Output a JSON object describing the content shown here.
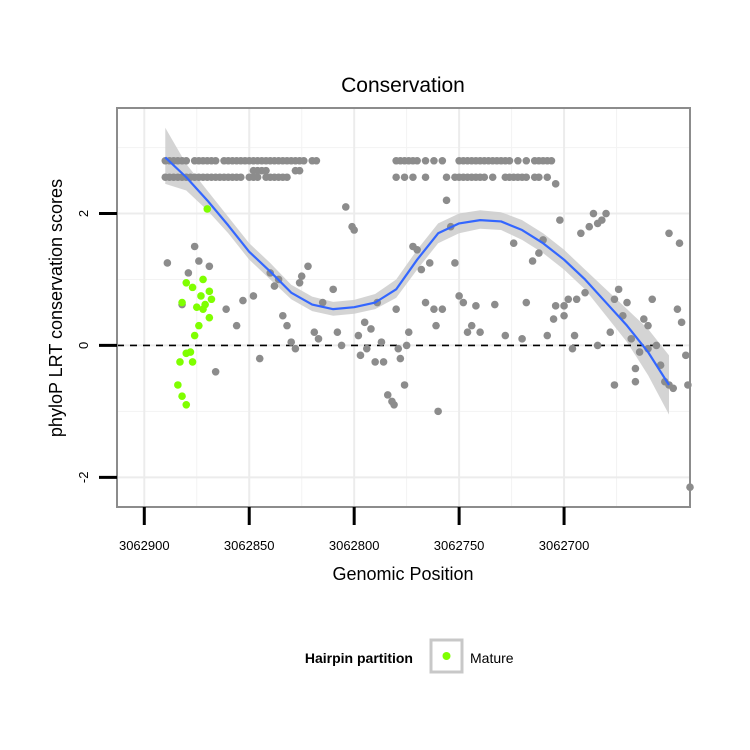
{
  "chart_data": {
    "type": "scatter",
    "title": "Conservation",
    "xlabel": "Genomic Position",
    "ylabel": "phyloP LRT conservation scores",
    "x_reversed": true,
    "xlim": [
      3062913,
      3062640
    ],
    "ylim": [
      -2.45,
      3.6
    ],
    "x_ticks": [
      3062900,
      3062850,
      3062800,
      3062750,
      3062700
    ],
    "x_tick_labels": [
      "3062900",
      "3062850",
      "3062800",
      "3062750",
      "3062700"
    ],
    "y_ticks": [
      -2,
      0,
      2
    ],
    "y_tick_labels": [
      "-2",
      "0",
      "2"
    ],
    "grid": true,
    "reference_line": {
      "y": 0,
      "style": "dashed"
    },
    "legend": {
      "title": "Hairpin partition",
      "placement": "bottom",
      "entries": [
        "Mature"
      ]
    },
    "colors": {
      "other_points": "#8c8c8c",
      "mature_points": "#7fff00",
      "smooth_line": "#3366ff",
      "confidence_band": "#cccccc"
    },
    "smooth": {
      "x": [
        3062890,
        3062880,
        3062870,
        3062860,
        3062850,
        3062840,
        3062830,
        3062820,
        3062810,
        3062800,
        3062790,
        3062780,
        3062770,
        3062760,
        3062750,
        3062740,
        3062730,
        3062720,
        3062710,
        3062700,
        3062690,
        3062680,
        3062670,
        3062660,
        3062650
      ],
      "y": [
        2.85,
        2.55,
        2.2,
        1.82,
        1.42,
        1.12,
        0.8,
        0.62,
        0.55,
        0.58,
        0.65,
        0.85,
        1.3,
        1.7,
        1.85,
        1.9,
        1.88,
        1.75,
        1.55,
        1.3,
        1.0,
        0.65,
        0.3,
        -0.1,
        -0.6
      ],
      "lower": [
        2.45,
        2.35,
        2.05,
        1.7,
        1.3,
        1.0,
        0.7,
        0.52,
        0.45,
        0.48,
        0.55,
        0.72,
        1.15,
        1.55,
        1.7,
        1.77,
        1.75,
        1.6,
        1.4,
        1.15,
        0.85,
        0.45,
        0.05,
        -0.45,
        -1.05
      ],
      "upper": [
        3.3,
        2.75,
        2.35,
        1.95,
        1.55,
        1.25,
        0.92,
        0.74,
        0.66,
        0.69,
        0.78,
        1.0,
        1.45,
        1.85,
        2.0,
        2.05,
        2.02,
        1.9,
        1.7,
        1.45,
        1.15,
        0.85,
        0.55,
        0.25,
        -0.15
      ]
    },
    "series": [
      {
        "name": "Mature",
        "points": [
          [
            3062870,
            2.07
          ],
          [
            3062872,
            1.0
          ],
          [
            3062869,
            0.82
          ],
          [
            3062868,
            0.7
          ],
          [
            3062871,
            0.62
          ],
          [
            3062869,
            0.42
          ],
          [
            3062872,
            0.55
          ],
          [
            3062873,
            0.75
          ],
          [
            3062875,
            0.58
          ],
          [
            3062877,
            0.88
          ],
          [
            3062880,
            0.95
          ],
          [
            3062882,
            0.65
          ],
          [
            3062874,
            0.3
          ],
          [
            3062876,
            0.15
          ],
          [
            3062878,
            -0.1
          ],
          [
            3062880,
            -0.12
          ],
          [
            3062877,
            -0.25
          ],
          [
            3062883,
            -0.25
          ],
          [
            3062884,
            -0.6
          ],
          [
            3062882,
            -0.77
          ],
          [
            3062880,
            -0.9
          ]
        ]
      },
      {
        "points": [
          [
            3062890,
            2.8
          ],
          [
            3062888,
            2.8
          ],
          [
            3062886,
            2.8
          ],
          [
            3062884,
            2.8
          ],
          [
            3062882,
            2.8
          ],
          [
            3062880,
            2.8
          ],
          [
            3062876,
            2.8
          ],
          [
            3062874,
            2.8
          ],
          [
            3062872,
            2.8
          ],
          [
            3062870,
            2.8
          ],
          [
            3062868,
            2.8
          ],
          [
            3062866,
            2.8
          ],
          [
            3062862,
            2.8
          ],
          [
            3062860,
            2.8
          ],
          [
            3062858,
            2.8
          ],
          [
            3062856,
            2.8
          ],
          [
            3062854,
            2.8
          ],
          [
            3062852,
            2.8
          ],
          [
            3062850,
            2.8
          ],
          [
            3062848,
            2.8
          ],
          [
            3062846,
            2.8
          ],
          [
            3062844,
            2.8
          ],
          [
            3062842,
            2.8
          ],
          [
            3062840,
            2.8
          ],
          [
            3062838,
            2.8
          ],
          [
            3062836,
            2.8
          ],
          [
            3062834,
            2.8
          ],
          [
            3062832,
            2.8
          ],
          [
            3062830,
            2.8
          ],
          [
            3062828,
            2.8
          ],
          [
            3062826,
            2.8
          ],
          [
            3062824,
            2.8
          ],
          [
            3062820,
            2.8
          ],
          [
            3062818,
            2.8
          ],
          [
            3062890,
            2.55
          ],
          [
            3062888,
            2.55
          ],
          [
            3062886,
            2.55
          ],
          [
            3062884,
            2.55
          ],
          [
            3062882,
            2.55
          ],
          [
            3062880,
            2.55
          ],
          [
            3062878,
            2.55
          ],
          [
            3062876,
            2.55
          ],
          [
            3062874,
            2.55
          ],
          [
            3062872,
            2.55
          ],
          [
            3062870,
            2.55
          ],
          [
            3062868,
            2.55
          ],
          [
            3062866,
            2.55
          ],
          [
            3062864,
            2.55
          ],
          [
            3062862,
            2.55
          ],
          [
            3062860,
            2.55
          ],
          [
            3062858,
            2.55
          ],
          [
            3062856,
            2.55
          ],
          [
            3062854,
            2.55
          ],
          [
            3062850,
            2.55
          ],
          [
            3062848,
            2.55
          ],
          [
            3062846,
            2.55
          ],
          [
            3062842,
            2.55
          ],
          [
            3062840,
            2.55
          ],
          [
            3062838,
            2.55
          ],
          [
            3062836,
            2.55
          ],
          [
            3062834,
            2.55
          ],
          [
            3062832,
            2.55
          ],
          [
            3062842,
            2.65
          ],
          [
            3062844,
            2.65
          ],
          [
            3062846,
            2.65
          ],
          [
            3062848,
            2.65
          ],
          [
            3062828,
            2.65
          ],
          [
            3062826,
            2.65
          ],
          [
            3062780,
            2.8
          ],
          [
            3062778,
            2.8
          ],
          [
            3062776,
            2.8
          ],
          [
            3062774,
            2.8
          ],
          [
            3062772,
            2.8
          ],
          [
            3062770,
            2.8
          ],
          [
            3062766,
            2.8
          ],
          [
            3062762,
            2.8
          ],
          [
            3062758,
            2.8
          ],
          [
            3062750,
            2.8
          ],
          [
            3062748,
            2.8
          ],
          [
            3062746,
            2.8
          ],
          [
            3062744,
            2.8
          ],
          [
            3062742,
            2.8
          ],
          [
            3062740,
            2.8
          ],
          [
            3062738,
            2.8
          ],
          [
            3062736,
            2.8
          ],
          [
            3062734,
            2.8
          ],
          [
            3062732,
            2.8
          ],
          [
            3062730,
            2.8
          ],
          [
            3062728,
            2.8
          ],
          [
            3062726,
            2.8
          ],
          [
            3062722,
            2.8
          ],
          [
            3062718,
            2.8
          ],
          [
            3062714,
            2.8
          ],
          [
            3062712,
            2.8
          ],
          [
            3062710,
            2.8
          ],
          [
            3062708,
            2.8
          ],
          [
            3062706,
            2.8
          ],
          [
            3062780,
            2.55
          ],
          [
            3062776,
            2.55
          ],
          [
            3062772,
            2.55
          ],
          [
            3062766,
            2.55
          ],
          [
            3062756,
            2.55
          ],
          [
            3062752,
            2.55
          ],
          [
            3062750,
            2.55
          ],
          [
            3062748,
            2.55
          ],
          [
            3062746,
            2.55
          ],
          [
            3062744,
            2.55
          ],
          [
            3062742,
            2.55
          ],
          [
            3062740,
            2.55
          ],
          [
            3062738,
            2.55
          ],
          [
            3062734,
            2.55
          ],
          [
            3062728,
            2.55
          ],
          [
            3062726,
            2.55
          ],
          [
            3062724,
            2.55
          ],
          [
            3062722,
            2.55
          ],
          [
            3062720,
            2.55
          ],
          [
            3062718,
            2.55
          ],
          [
            3062714,
            2.55
          ],
          [
            3062712,
            2.55
          ],
          [
            3062708,
            2.55
          ],
          [
            3062704,
            2.45
          ],
          [
            3062889,
            1.25
          ],
          [
            3062882,
            0.62
          ],
          [
            3062879,
            1.1
          ],
          [
            3062876,
            1.5
          ],
          [
            3062874,
            1.28
          ],
          [
            3062869,
            1.2
          ],
          [
            3062866,
            -0.4
          ],
          [
            3062861,
            0.55
          ],
          [
            3062856,
            0.3
          ],
          [
            3062853,
            0.68
          ],
          [
            3062848,
            0.75
          ],
          [
            3062845,
            -0.2
          ],
          [
            3062840,
            1.1
          ],
          [
            3062838,
            0.9
          ],
          [
            3062836,
            1.0
          ],
          [
            3062834,
            0.45
          ],
          [
            3062832,
            0.3
          ],
          [
            3062830,
            0.05
          ],
          [
            3062828,
            -0.05
          ],
          [
            3062826,
            0.95
          ],
          [
            3062825,
            1.05
          ],
          [
            3062822,
            1.2
          ],
          [
            3062819,
            0.2
          ],
          [
            3062817,
            0.1
          ],
          [
            3062815,
            0.65
          ],
          [
            3062810,
            0.85
          ],
          [
            3062808,
            0.2
          ],
          [
            3062806,
            0.0
          ],
          [
            3062804,
            2.1
          ],
          [
            3062801,
            1.8
          ],
          [
            3062800,
            1.75
          ],
          [
            3062798,
            0.15
          ],
          [
            3062797,
            -0.15
          ],
          [
            3062795,
            0.35
          ],
          [
            3062794,
            -0.05
          ],
          [
            3062792,
            0.25
          ],
          [
            3062790,
            -0.25
          ],
          [
            3062789,
            0.65
          ],
          [
            3062787,
            0.05
          ],
          [
            3062786,
            -0.25
          ],
          [
            3062784,
            -0.75
          ],
          [
            3062782,
            -0.85
          ],
          [
            3062781,
            -0.9
          ],
          [
            3062780,
            0.55
          ],
          [
            3062779,
            -0.05
          ],
          [
            3062778,
            -0.2
          ],
          [
            3062776,
            -0.6
          ],
          [
            3062775,
            0.0
          ],
          [
            3062774,
            0.2
          ],
          [
            3062772,
            1.5
          ],
          [
            3062770,
            1.45
          ],
          [
            3062768,
            1.15
          ],
          [
            3062766,
            0.65
          ],
          [
            3062764,
            1.25
          ],
          [
            3062762,
            0.55
          ],
          [
            3062761,
            0.3
          ],
          [
            3062760,
            -1.0
          ],
          [
            3062758,
            0.55
          ],
          [
            3062756,
            2.2
          ],
          [
            3062754,
            1.8
          ],
          [
            3062752,
            1.25
          ],
          [
            3062750,
            0.75
          ],
          [
            3062748,
            0.65
          ],
          [
            3062746,
            0.2
          ],
          [
            3062744,
            0.3
          ],
          [
            3062742,
            0.6
          ],
          [
            3062740,
            0.2
          ],
          [
            3062733,
            0.62
          ],
          [
            3062728,
            0.15
          ],
          [
            3062724,
            1.55
          ],
          [
            3062718,
            0.65
          ],
          [
            3062715,
            1.28
          ],
          [
            3062712,
            1.4
          ],
          [
            3062710,
            1.6
          ],
          [
            3062708,
            0.15
          ],
          [
            3062705,
            0.4
          ],
          [
            3062704,
            0.6
          ],
          [
            3062702,
            1.9
          ],
          [
            3062700,
            0.45
          ],
          [
            3062698,
            0.7
          ],
          [
            3062696,
            -0.05
          ],
          [
            3062695,
            0.15
          ],
          [
            3062694,
            0.7
          ],
          [
            3062692,
            1.7
          ],
          [
            3062690,
            0.8
          ],
          [
            3062688,
            1.8
          ],
          [
            3062686,
            2.0
          ],
          [
            3062684,
            1.85
          ],
          [
            3062682,
            1.9
          ],
          [
            3062680,
            2.0
          ],
          [
            3062678,
            0.2
          ],
          [
            3062676,
            0.7
          ],
          [
            3062674,
            0.85
          ],
          [
            3062672,
            0.45
          ],
          [
            3062670,
            0.65
          ],
          [
            3062668,
            0.1
          ],
          [
            3062666,
            -0.35
          ],
          [
            3062664,
            -0.1
          ],
          [
            3062662,
            0.4
          ],
          [
            3062660,
            -0.05
          ],
          [
            3062658,
            0.7
          ],
          [
            3062656,
            0.0
          ],
          [
            3062654,
            -0.3
          ],
          [
            3062652,
            -0.55
          ],
          [
            3062650,
            -0.6
          ],
          [
            3062648,
            -0.65
          ],
          [
            3062646,
            0.55
          ],
          [
            3062644,
            0.35
          ],
          [
            3062642,
            -0.15
          ],
          [
            3062641,
            -0.6
          ],
          [
            3062640,
            -2.15
          ],
          [
            3062645,
            1.55
          ],
          [
            3062650,
            1.7
          ],
          [
            3062660,
            0.3
          ],
          [
            3062666,
            -0.55
          ],
          [
            3062676,
            -0.6
          ],
          [
            3062684,
            0.0
          ],
          [
            3062700,
            0.6
          ],
          [
            3062720,
            0.1
          ]
        ]
      }
    ]
  }
}
